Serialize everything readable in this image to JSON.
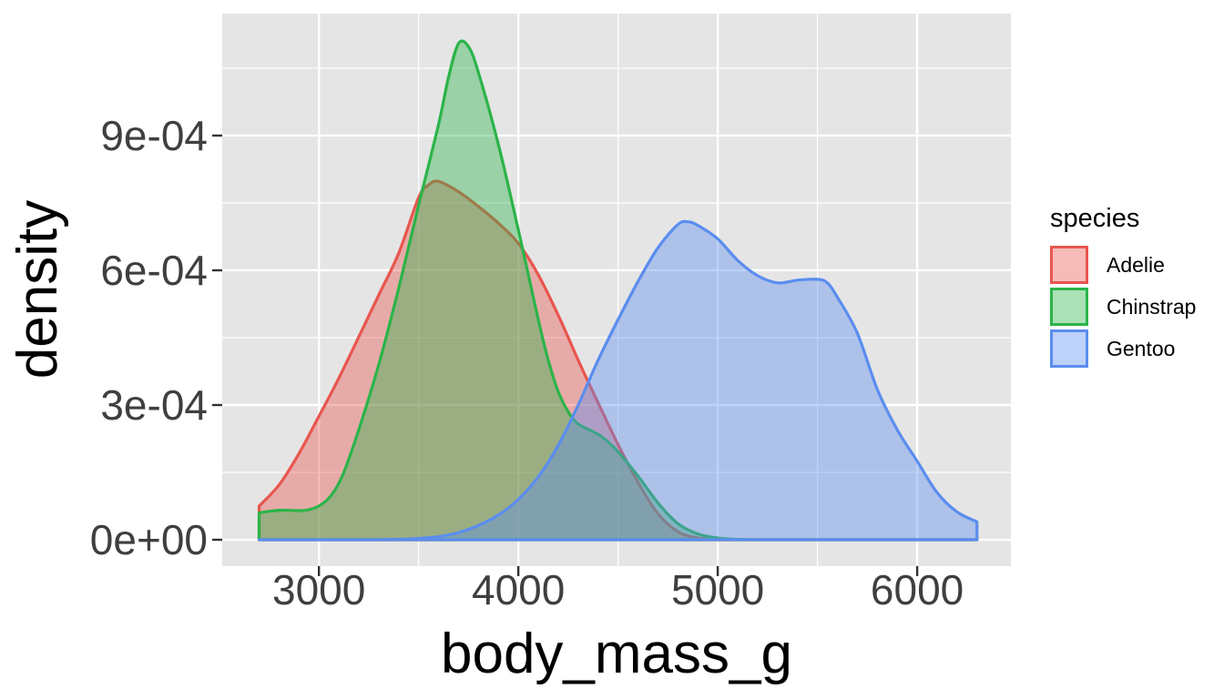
{
  "figure": {
    "background": "#ffffff",
    "panel_background": "#e5e5e5",
    "grid_color": "#ffffff",
    "axis_tick_color": "#333333",
    "tick_label_color": "#3f3f3f"
  },
  "chart_data": {
    "type": "area",
    "subtype": "density",
    "title": "",
    "xlabel": "body_mass_g",
    "ylabel": "density",
    "grid": "on",
    "x_axis": {
      "domain": [
        2515,
        6470
      ],
      "ticks": [
        3000,
        4000,
        5000,
        6000
      ],
      "tick_labels": [
        "3000",
        "4000",
        "5000",
        "6000"
      ],
      "minor_ticks": [
        3500,
        4500,
        5500
      ]
    },
    "y_axis": {
      "domain": [
        -5.87e-05,
        0.0011715
      ],
      "ticks": [
        0,
        0.0003,
        0.0006,
        0.0009
      ],
      "tick_labels": [
        "0e+00",
        "3e-04",
        "6e-04",
        "9e-04"
      ],
      "minor_ticks": [
        0.00015,
        0.00045,
        0.00075,
        0.00105
      ]
    },
    "legend": {
      "title": "species",
      "position": "right",
      "items": [
        {
          "label": "Adelie",
          "color": "#e8564e"
        },
        {
          "label": "Chinstrap",
          "color": "#2bb449"
        },
        {
          "label": "Gentoo",
          "color": "#5b8def"
        }
      ]
    },
    "series": [
      {
        "name": "Adelie",
        "color": "#e8564e",
        "fill_opacity": 0.4,
        "points": [
          [
            2700,
            7.5e-05
          ],
          [
            2800,
            0.000122
          ],
          [
            2900,
            0.000192
          ],
          [
            3000,
            0.000275
          ],
          [
            3100,
            0.00036
          ],
          [
            3200,
            0.000452
          ],
          [
            3300,
            0.000545
          ],
          [
            3400,
            0.000638
          ],
          [
            3500,
            0.000762
          ],
          [
            3550,
            0.00079
          ],
          [
            3600,
            0.000798
          ],
          [
            3700,
            0.000775
          ],
          [
            3800,
            0.000742
          ],
          [
            3900,
            0.000705
          ],
          [
            4000,
            0.00066
          ],
          [
            4100,
            0.00059
          ],
          [
            4200,
            0.0005
          ],
          [
            4300,
            0.0004
          ],
          [
            4350,
            0.000352
          ],
          [
            4400,
            0.000305
          ],
          [
            4500,
            0.000212
          ],
          [
            4600,
            0.000128
          ],
          [
            4700,
            5.8e-05
          ],
          [
            4800,
            1.8e-05
          ],
          [
            4900,
            4e-06
          ],
          [
            5000,
            1e-06
          ],
          [
            5200,
            0
          ],
          [
            5600,
            0
          ],
          [
            6000,
            0
          ],
          [
            6300,
            0
          ]
        ]
      },
      {
        "name": "Chinstrap",
        "color": "#2bb449",
        "fill_opacity": 0.4,
        "points": [
          [
            2700,
            6e-05
          ],
          [
            2760,
            6.4e-05
          ],
          [
            2820,
            6.6e-05
          ],
          [
            2880,
            6.5e-05
          ],
          [
            2940,
            6.6e-05
          ],
          [
            3000,
            7.5e-05
          ],
          [
            3060,
            9.8e-05
          ],
          [
            3120,
            0.000145
          ],
          [
            3200,
            0.000245
          ],
          [
            3300,
            0.00039
          ],
          [
            3400,
            0.00056
          ],
          [
            3500,
            0.000745
          ],
          [
            3600,
            0.000925
          ],
          [
            3650,
            0.00103
          ],
          [
            3700,
            0.001105
          ],
          [
            3750,
            0.001098
          ],
          [
            3800,
            0.00104
          ],
          [
            3900,
            0.00088
          ],
          [
            4000,
            0.00069
          ],
          [
            4100,
            0.00049
          ],
          [
            4150,
            0.0004
          ],
          [
            4200,
            0.00033
          ],
          [
            4250,
            0.000285
          ],
          [
            4300,
            0.000258
          ],
          [
            4400,
            0.000235
          ],
          [
            4450,
            0.000218
          ],
          [
            4500,
            0.000196
          ],
          [
            4600,
            0.000142
          ],
          [
            4700,
            8.2e-05
          ],
          [
            4800,
            3.6e-05
          ],
          [
            4900,
            1.3e-05
          ],
          [
            5000,
            4e-06
          ],
          [
            5100,
            1e-06
          ],
          [
            5300,
            0
          ],
          [
            5700,
            0
          ],
          [
            6100,
            0
          ],
          [
            6300,
            0
          ]
        ]
      },
      {
        "name": "Gentoo",
        "color": "#5b8def",
        "fill_opacity": 0.4,
        "points": [
          [
            2700,
            0
          ],
          [
            3000,
            0
          ],
          [
            3200,
            0
          ],
          [
            3400,
            1e-06
          ],
          [
            3500,
            3e-06
          ],
          [
            3600,
            7e-06
          ],
          [
            3700,
            1.6e-05
          ],
          [
            3800,
            3.2e-05
          ],
          [
            3900,
            5.5e-05
          ],
          [
            4000,
            9e-05
          ],
          [
            4100,
            0.00014
          ],
          [
            4200,
            0.00021
          ],
          [
            4300,
            0.0003
          ],
          [
            4400,
            0.0004
          ],
          [
            4500,
            0.00049
          ],
          [
            4600,
            0.000575
          ],
          [
            4700,
            0.00065
          ],
          [
            4800,
            0.000702
          ],
          [
            4850,
            0.000708
          ],
          [
            4900,
            0.0007
          ],
          [
            5000,
            0.00067
          ],
          [
            5100,
            0.000622
          ],
          [
            5200,
            0.000588
          ],
          [
            5300,
            0.000572
          ],
          [
            5400,
            0.000578
          ],
          [
            5500,
            0.00058
          ],
          [
            5550,
            0.000572
          ],
          [
            5600,
            0.00054
          ],
          [
            5700,
            0.00046
          ],
          [
            5800,
            0.000335
          ],
          [
            5900,
            0.000245
          ],
          [
            6000,
            0.000175
          ],
          [
            6100,
            0.000105
          ],
          [
            6200,
            6.2e-05
          ],
          [
            6300,
            4e-05
          ]
        ]
      }
    ]
  }
}
